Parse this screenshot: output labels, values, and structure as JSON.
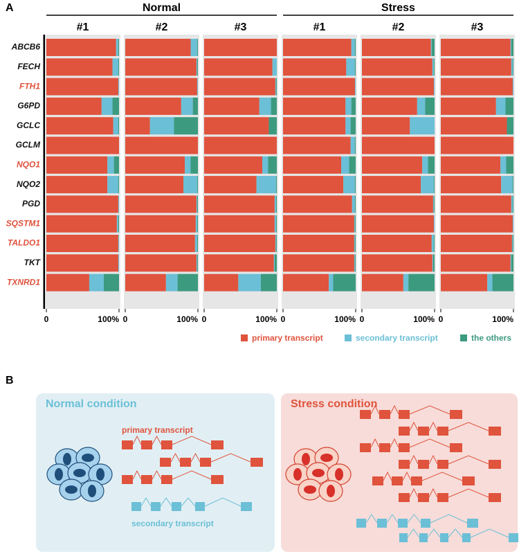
{
  "panel_labels": [
    "A",
    "B"
  ],
  "chart_data": {
    "type": "bar",
    "orientation": "horizontal",
    "stacked": true,
    "categories": [
      "ABCB6",
      "FECH",
      "FTH1",
      "G6PD",
      "GCLC",
      "GCLM",
      "NQO1",
      "NQO2",
      "PGD",
      "SQSTM1",
      "TALDO1",
      "TKT",
      "TXNRD1"
    ],
    "category_colors": [
      "#111111",
      "#111111",
      "#e0533d",
      "#111111",
      "#111111",
      "#111111",
      "#e0533d",
      "#111111",
      "#111111",
      "#e0533d",
      "#e0533d",
      "#111111",
      "#e0533d"
    ],
    "series": [
      {
        "name": "primary transcript",
        "color": "#e0533d"
      },
      {
        "name": "secondary transcript",
        "color": "#6bbfd6"
      },
      {
        "name": "the others",
        "color": "#3c9a7f"
      }
    ],
    "xlim": [
      0,
      100
    ],
    "xticks": [
      0,
      {
        "value": 100,
        "label": "100%"
      }
    ],
    "groups": [
      {
        "name": "Normal",
        "panels": [
          {
            "title": "#1",
            "values": [
              [
                96,
                3,
                1
              ],
              [
                91,
                8,
                1
              ],
              [
                99,
                1,
                0
              ],
              [
                76,
                15,
                9
              ],
              [
                92,
                7,
                1
              ],
              [
                100,
                0,
                0
              ],
              [
                84,
                9,
                7
              ],
              [
                84,
                15,
                1
              ],
              [
                99,
                1,
                0
              ],
              [
                97,
                2,
                1
              ],
              [
                99,
                1,
                0
              ],
              [
                99,
                1,
                0
              ],
              [
                59,
                20,
                21
              ]
            ]
          },
          {
            "title": "#2",
            "values": [
              [
                90,
                9,
                1
              ],
              [
                98,
                1,
                1
              ],
              [
                99,
                1,
                0
              ],
              [
                77,
                16,
                7
              ],
              [
                34,
                33,
                33
              ],
              [
                100,
                0,
                0
              ],
              [
                82,
                8,
                10
              ],
              [
                80,
                19,
                1
              ],
              [
                98,
                1,
                1
              ],
              [
                97,
                2,
                1
              ],
              [
                96,
                3,
                1
              ],
              [
                98,
                1,
                1
              ],
              [
                56,
                16,
                28
              ]
            ]
          },
          {
            "title": "#3",
            "values": [
              [
                100,
                0,
                0
              ],
              [
                94,
                6,
                0
              ],
              [
                98,
                1,
                1
              ],
              [
                76,
                16,
                8
              ],
              [
                89,
                0,
                11
              ],
              [
                100,
                0,
                0
              ],
              [
                80,
                8,
                12
              ],
              [
                72,
                27,
                1
              ],
              [
                97,
                2,
                1
              ],
              [
                97,
                2,
                1
              ],
              [
                98,
                1,
                1
              ],
              [
                96,
                1,
                3
              ],
              [
                47,
                31,
                22
              ]
            ]
          }
        ]
      },
      {
        "name": "Stress",
        "panels": [
          {
            "title": "#1",
            "values": [
              [
                94,
                5,
                1
              ],
              [
                87,
                12,
                1
              ],
              [
                99,
                1,
                0
              ],
              [
                86,
                8,
                6
              ],
              [
                86,
                7,
                7
              ],
              [
                93,
                6,
                1
              ],
              [
                80,
                11,
                9
              ],
              [
                83,
                16,
                1
              ],
              [
                95,
                4,
                1
              ],
              [
                98,
                1,
                1
              ],
              [
                98,
                1,
                1
              ],
              [
                98,
                1,
                1
              ],
              [
                63,
                6,
                31
              ]
            ]
          },
          {
            "title": "#2",
            "values": [
              [
                95,
                1,
                4
              ],
              [
                97,
                2,
                1
              ],
              [
                99,
                1,
                0
              ],
              [
                76,
                11,
                13
              ],
              [
                66,
                34,
                0
              ],
              [
                100,
                0,
                0
              ],
              [
                83,
                8,
                9
              ],
              [
                81,
                18,
                1
              ],
              [
                98,
                1,
                1
              ],
              [
                99,
                1,
                0
              ],
              [
                96,
                3,
                1
              ],
              [
                97,
                1,
                2
              ],
              [
                57,
                7,
                36
              ]
            ]
          },
          {
            "title": "#3",
            "values": [
              [
                96,
                1,
                3
              ],
              [
                97,
                2,
                1
              ],
              [
                99,
                1,
                0
              ],
              [
                76,
                13,
                11
              ],
              [
                91,
                0,
                9
              ],
              [
                100,
                0,
                0
              ],
              [
                82,
                8,
                10
              ],
              [
                83,
                16,
                1
              ],
              [
                97,
                2,
                1
              ],
              [
                99,
                1,
                0
              ],
              [
                98,
                1,
                1
              ],
              [
                96,
                1,
                3
              ],
              [
                64,
                7,
                29
              ]
            ]
          }
        ]
      }
    ]
  },
  "diagram": {
    "normal": {
      "title": "Normal condition",
      "primary_label": "primary transcript",
      "secondary_label": "secondary transcript"
    },
    "stress": {
      "title": "Stress condition"
    }
  }
}
